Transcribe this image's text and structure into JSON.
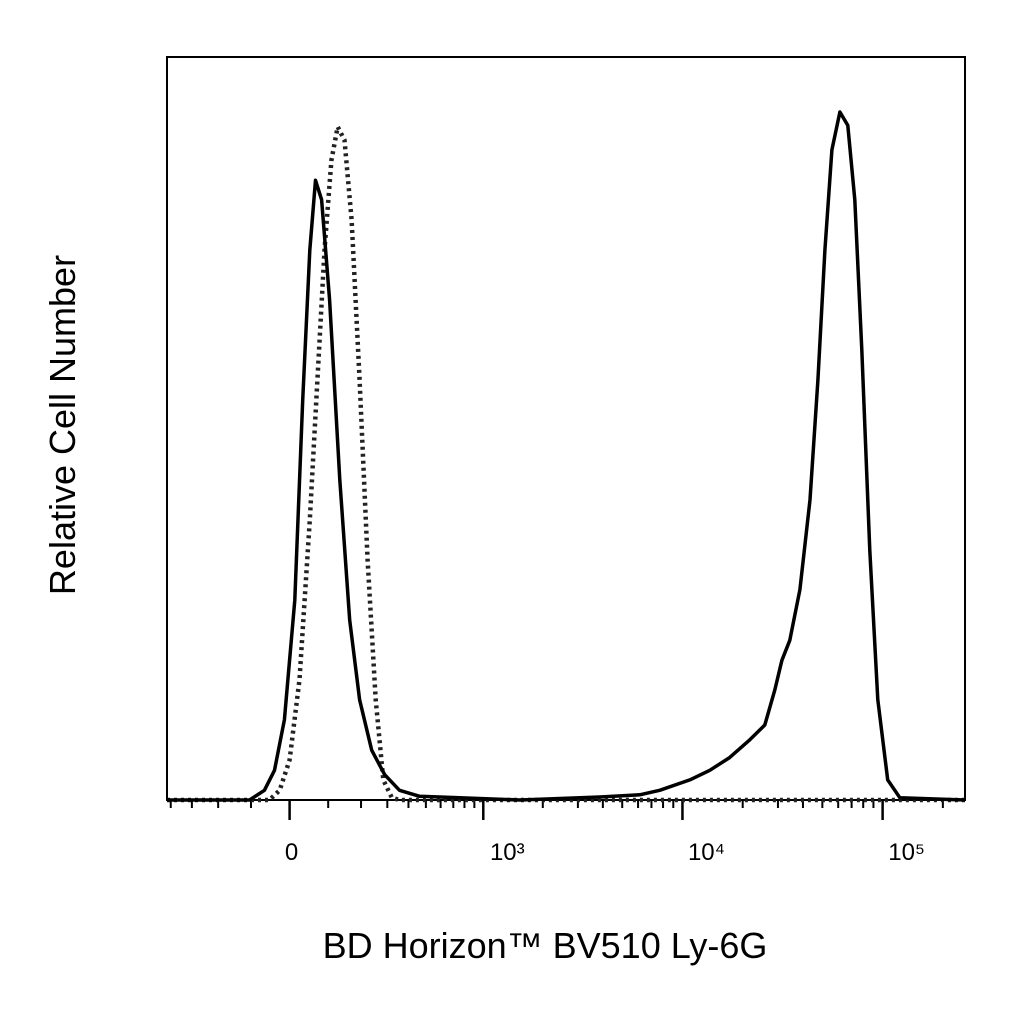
{
  "chart_data": {
    "type": "line",
    "x_label": "BD Horizon™ BV510 Ly-6G",
    "y_label": "Relative Cell Number",
    "xscale": "biexponential",
    "xlim": [
      -420,
      258000
    ],
    "ylim": [
      0,
      100
    ],
    "xticks": [
      0,
      {
        "value": 1000,
        "label": "10³"
      },
      {
        "value": 10000,
        "label": "10⁴"
      },
      {
        "value": 100000,
        "label": "10⁵"
      }
    ],
    "xminorticks": [
      -400,
      -300,
      -200,
      -100,
      100,
      200,
      300,
      400,
      500,
      600,
      700,
      800,
      900,
      2000,
      3000,
      4000,
      5000,
      6000,
      7000,
      8000,
      9000,
      20000,
      30000,
      40000,
      50000,
      60000,
      70000,
      80000,
      90000,
      200000
    ],
    "series": [
      {
        "color": "#000000",
        "style": "solid",
        "x": [
          -420,
          -104,
          -64,
          -38,
          -13,
          13,
          33,
          51,
          66,
          82,
          104,
          133,
          163,
          195,
          238,
          289,
          355,
          462,
          757,
          1535,
          3860,
          6120,
          7700,
          10880,
          13700,
          17200,
          21700,
          25800,
          28950,
          31400,
          34400,
          38600,
          43400,
          47500,
          51500,
          55800,
          61200,
          67000,
          72600,
          78700,
          86300,
          94600,
          106000,
          122000,
          258000
        ],
        "values": [
          0,
          0,
          1.3,
          4.0,
          10.8,
          26.9,
          53.8,
          74.0,
          83.4,
          80.8,
          67.3,
          43.1,
          24.2,
          13.5,
          6.7,
          3.4,
          1.3,
          0.5,
          0.3,
          0,
          0.4,
          0.7,
          1.3,
          2.7,
          4.0,
          5.7,
          8.1,
          10.1,
          14.8,
          18.8,
          21.5,
          28.3,
          40.4,
          56.5,
          74.0,
          87.5,
          92.6,
          90.8,
          80.8,
          60.6,
          33.6,
          13.5,
          2.7,
          0.3,
          0
        ]
      },
      {
        "color": "#222222",
        "style": "dotted",
        "x": [
          -420,
          -51,
          -25,
          0,
          25,
          51,
          71,
          90,
          109,
          127,
          147,
          169,
          195,
          223,
          253,
          283,
          320,
          355,
          258000
        ],
        "values": [
          0,
          0,
          1.3,
          5.4,
          16.2,
          37.7,
          56.5,
          74.0,
          86.1,
          90.6,
          88.8,
          78.1,
          56.5,
          32.3,
          13.5,
          2.7,
          0.3,
          0,
          0
        ]
      }
    ]
  }
}
